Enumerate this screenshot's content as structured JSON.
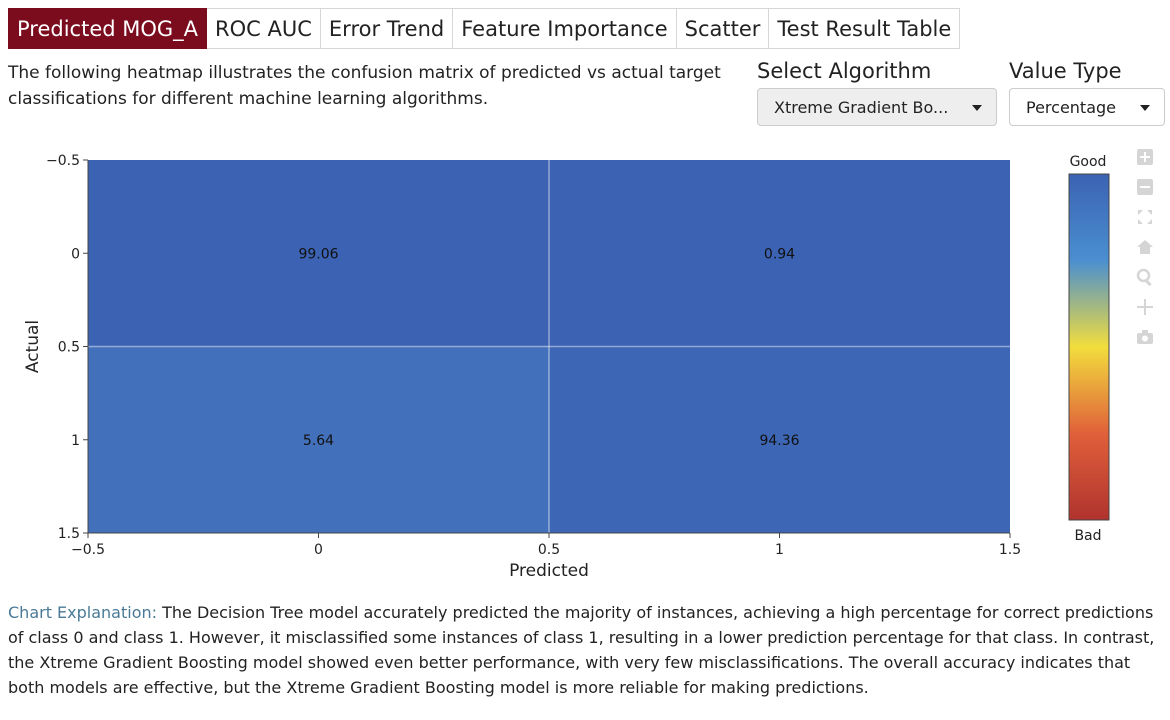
{
  "tabs": [
    {
      "label": "Predicted MOG_A",
      "active": true
    },
    {
      "label": "ROC AUC"
    },
    {
      "label": "Error Trend"
    },
    {
      "label": "Feature Importance"
    },
    {
      "label": "Scatter"
    },
    {
      "label": "Test Result Table"
    }
  ],
  "intro": "The following heatmap illustrates the confusion matrix of predicted vs actual target classifications for different machine learning algorithms.",
  "controls": {
    "algorithm_label": "Select Algorithm",
    "algorithm_value": "Xtreme Gradient Bo...",
    "value_type_label": "Value Type",
    "value_type_value": "Percentage"
  },
  "modebar_icons": [
    "zoom-in-icon",
    "zoom-out-icon",
    "autoscale-icon",
    "home-icon",
    "zoom-icon",
    "pan-icon",
    "camera-icon"
  ],
  "chart_data": {
    "type": "heatmap",
    "xlabel": "Predicted",
    "ylabel": "Actual",
    "xlim": [
      -0.5,
      1.5
    ],
    "ylim": [
      1.5,
      -0.5
    ],
    "x_ticks": [
      "−0.5",
      "0",
      "0.5",
      "1",
      "1.5"
    ],
    "y_ticks": [
      "−0.5",
      "0",
      "0.5",
      "1",
      "1.5"
    ],
    "x": [
      0,
      1
    ],
    "y": [
      0,
      1
    ],
    "z": [
      [
        99.06,
        0.94
      ],
      [
        5.64,
        94.36
      ]
    ],
    "cell_labels": [
      [
        "99.06",
        "0.94"
      ],
      [
        "5.64",
        "94.36"
      ]
    ],
    "colorscale": {
      "top_label": "Good",
      "bottom_label": "Bad",
      "colors": [
        "#3b62b3",
        "#4a8fd0",
        "#f2dd3d",
        "#e0603a",
        "#b0332e"
      ]
    },
    "cell_colors": [
      [
        "#3b62b3",
        "#3b62b3"
      ],
      [
        "#4370bb",
        "#3d66b5"
      ]
    ],
    "grid": true,
    "legend": "colorbar-right"
  },
  "explanation": {
    "label": "Chart Explanation:",
    "text": " The Decision Tree model accurately predicted the majority of instances, achieving a high percentage for correct predictions of class 0 and class 1. However, it misclassified some instances of class 1, resulting in a lower prediction percentage for that class. In contrast, the Xtreme Gradient Boosting model showed even better performance, with very few misclassifications. The overall accuracy indicates that both models are effective, but the Xtreme Gradient Boosting model is more reliable for making predictions."
  }
}
